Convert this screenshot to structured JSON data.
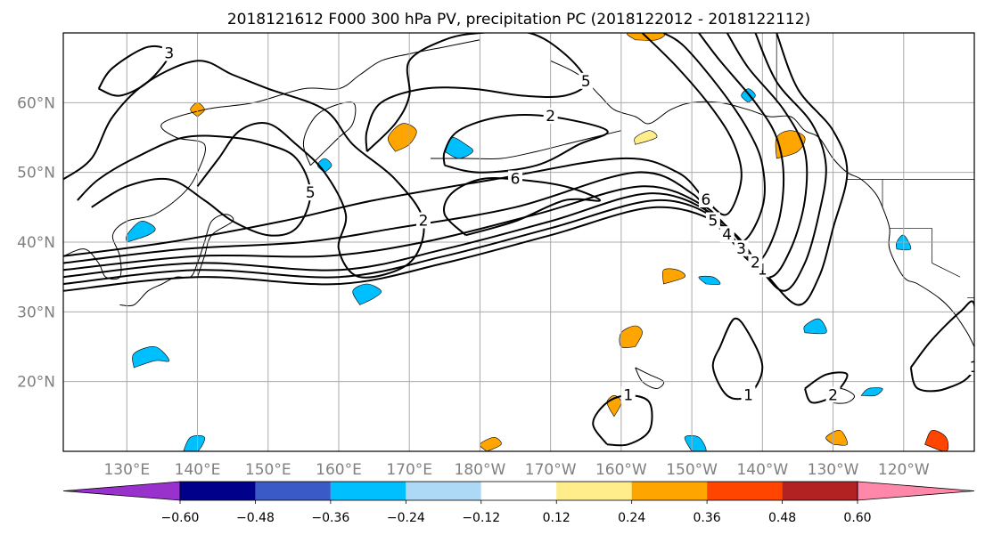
{
  "title": "2018121612 F000 300 hPa PV, precipitation PC (2018122012 - 2018122112)",
  "map": {
    "lon_range": [
      121,
      250
    ],
    "lat_range": [
      10,
      70
    ],
    "lon_ticks": [
      {
        "lon": 130,
        "label": "130°E"
      },
      {
        "lon": 140,
        "label": "140°E"
      },
      {
        "lon": 150,
        "label": "150°E"
      },
      {
        "lon": 160,
        "label": "160°E"
      },
      {
        "lon": 170,
        "label": "170°E"
      },
      {
        "lon": 180,
        "label": "180°W"
      },
      {
        "lon": 190,
        "label": "170°W"
      },
      {
        "lon": 200,
        "label": "160°W"
      },
      {
        "lon": 210,
        "label": "150°W"
      },
      {
        "lon": 220,
        "label": "140°W"
      },
      {
        "lon": 230,
        "label": "130°W"
      },
      {
        "lon": 240,
        "label": "120°W"
      }
    ],
    "lat_ticks": [
      {
        "lat": 20,
        "label": "20°N"
      },
      {
        "lat": 30,
        "label": "30°N"
      },
      {
        "lat": 40,
        "label": "40°N"
      },
      {
        "lat": 50,
        "label": "50°N"
      },
      {
        "lat": 60,
        "label": "60°N"
      }
    ],
    "tick_label_color": "#808080",
    "grid": true,
    "grid_color": "#aaaaaa"
  },
  "pv_contours": [
    {
      "level": "1",
      "points": [
        [
          121,
          33
        ],
        [
          140,
          35
        ],
        [
          160,
          34
        ],
        [
          175,
          37
        ],
        [
          190,
          41
        ],
        [
          205,
          45
        ],
        [
          215,
          42
        ],
        [
          220,
          36
        ],
        [
          225,
          31
        ],
        [
          228,
          35
        ],
        [
          230,
          42
        ],
        [
          232,
          50
        ],
        [
          230,
          56
        ],
        [
          225,
          62
        ],
        [
          222,
          70
        ]
      ]
    },
    {
      "level": "2",
      "points": [
        [
          121,
          34
        ],
        [
          140,
          36
        ],
        [
          160,
          35
        ],
        [
          175,
          38
        ],
        [
          190,
          42
        ],
        [
          205,
          46
        ],
        [
          214,
          43
        ],
        [
          219,
          37
        ],
        [
          223,
          33
        ],
        [
          226,
          37
        ],
        [
          228,
          44
        ],
        [
          229,
          51
        ],
        [
          227,
          57
        ],
        [
          222,
          63
        ],
        [
          219,
          70
        ]
      ]
    },
    {
      "level": "3",
      "points": [
        [
          121,
          35
        ],
        [
          140,
          37
        ],
        [
          160,
          36
        ],
        [
          175,
          39
        ],
        [
          190,
          43
        ],
        [
          204,
          47
        ],
        [
          213,
          44
        ],
        [
          217,
          39
        ],
        [
          221,
          35
        ],
        [
          224,
          39
        ],
        [
          226,
          46
        ],
        [
          226,
          53
        ],
        [
          223,
          59
        ],
        [
          218,
          65
        ],
        [
          215,
          70
        ]
      ]
    },
    {
      "level": "4",
      "points": [
        [
          121,
          36
        ],
        [
          140,
          38
        ],
        [
          158,
          38
        ],
        [
          172,
          40
        ],
        [
          188,
          44
        ],
        [
          203,
          48
        ],
        [
          212,
          45
        ],
        [
          215,
          41
        ],
        [
          219,
          37
        ],
        [
          222,
          42
        ],
        [
          223,
          49
        ],
        [
          222,
          55
        ],
        [
          219,
          60
        ],
        [
          214,
          66
        ],
        [
          211,
          70
        ]
      ]
    },
    {
      "level": "5",
      "points": [
        [
          121,
          37
        ],
        [
          138,
          39
        ],
        [
          155,
          40
        ],
        [
          168,
          42
        ],
        [
          185,
          45
        ],
        [
          202,
          50
        ],
        [
          210,
          47
        ],
        [
          213,
          43
        ],
        [
          217,
          40
        ],
        [
          220,
          45
        ],
        [
          220,
          51
        ],
        [
          218,
          56
        ],
        [
          214,
          62
        ],
        [
          209,
          68
        ],
        [
          206,
          70
        ]
      ]
    },
    {
      "level": "6",
      "points": [
        [
          121,
          38
        ],
        [
          136,
          40
        ],
        [
          152,
          43
        ],
        [
          165,
          46
        ],
        [
          182,
          49
        ],
        [
          200,
          52
        ],
        [
          208,
          50
        ],
        [
          212,
          46
        ],
        [
          215,
          44
        ],
        [
          217,
          49
        ],
        [
          216,
          54
        ],
        [
          213,
          59
        ],
        [
          208,
          65
        ],
        [
          203,
          70
        ]
      ]
    },
    {
      "level": "2",
      "points": [
        [
          140,
          48
        ],
        [
          143,
          52
        ],
        [
          146,
          56
        ],
        [
          150,
          57
        ],
        [
          154,
          54
        ],
        [
          158,
          50
        ],
        [
          161,
          44
        ],
        [
          160,
          39
        ],
        [
          163,
          35
        ],
        [
          170,
          37
        ],
        [
          172,
          43
        ],
        [
          168,
          49
        ],
        [
          162,
          54
        ],
        [
          158,
          59
        ],
        [
          150,
          62
        ],
        [
          145,
          64
        ],
        [
          140,
          66
        ],
        [
          133,
          63
        ],
        [
          128,
          58
        ],
        [
          125,
          52
        ],
        [
          121,
          49
        ]
      ]
    },
    {
      "level": "5",
      "points": [
        [
          125,
          45
        ],
        [
          130,
          48
        ],
        [
          136,
          49
        ],
        [
          141,
          46
        ],
        [
          145,
          43
        ],
        [
          150,
          41
        ],
        [
          154,
          42
        ],
        [
          156,
          47
        ],
        [
          154,
          52
        ],
        [
          150,
          54
        ],
        [
          145,
          55
        ],
        [
          138,
          55
        ],
        [
          131,
          52
        ],
        [
          126,
          49
        ],
        [
          123,
          46
        ]
      ]
    },
    {
      "level": "3",
      "points": [
        [
          126,
          62
        ],
        [
          128,
          65
        ],
        [
          133,
          68
        ],
        [
          136,
          67
        ],
        [
          133,
          63
        ],
        [
          129,
          61
        ],
        [
          126,
          62
        ]
      ]
    },
    {
      "level": "2",
      "points": [
        [
          175,
          51
        ],
        [
          180,
          50
        ],
        [
          188,
          51
        ],
        [
          194,
          54
        ],
        [
          198,
          56
        ],
        [
          190,
          58
        ],
        [
          183,
          58
        ],
        [
          177,
          56
        ],
        [
          175,
          53
        ],
        [
          175,
          51
        ]
      ]
    },
    {
      "level": "6",
      "points": [
        [
          178,
          41
        ],
        [
          185,
          43
        ],
        [
          192,
          46
        ],
        [
          197,
          46
        ],
        [
          192,
          48
        ],
        [
          185,
          49
        ],
        [
          180,
          49
        ],
        [
          176,
          47
        ],
        [
          175,
          44
        ],
        [
          178,
          41
        ]
      ]
    },
    {
      "level": "5",
      "points": [
        [
          164,
          53
        ],
        [
          168,
          57
        ],
        [
          170,
          61
        ],
        [
          170,
          66
        ],
        [
          175,
          69
        ],
        [
          180,
          70
        ],
        [
          187,
          70
        ],
        [
          192,
          67
        ],
        [
          195,
          63
        ],
        [
          192,
          61
        ],
        [
          186,
          61
        ],
        [
          179,
          62
        ],
        [
          172,
          62
        ],
        [
          166,
          60
        ],
        [
          164,
          56
        ],
        [
          164,
          53
        ]
      ]
    },
    {
      "level": "1",
      "points": [
        [
          214,
          25
        ],
        [
          216,
          29
        ],
        [
          218,
          27
        ],
        [
          220,
          22
        ],
        [
          218,
          18
        ],
        [
          215,
          18
        ],
        [
          213,
          22
        ],
        [
          214,
          25
        ]
      ]
    },
    {
      "level": "1",
      "points": [
        [
          198,
          11
        ],
        [
          201,
          11
        ],
        [
          204,
          13
        ],
        [
          204,
          17
        ],
        [
          201,
          18
        ],
        [
          198,
          17
        ],
        [
          196,
          14
        ],
        [
          198,
          11
        ]
      ]
    },
    {
      "level": "1",
      "points": [
        [
          241,
          22
        ],
        [
          244,
          26
        ],
        [
          248,
          30
        ],
        [
          250,
          31
        ],
        [
          250,
          22
        ],
        [
          246,
          19
        ],
        [
          242,
          19
        ],
        [
          241,
          22
        ]
      ]
    },
    {
      "level": "2",
      "points": [
        [
          226,
          19
        ],
        [
          229,
          21
        ],
        [
          232,
          21
        ],
        [
          230,
          18
        ],
        [
          227,
          17
        ],
        [
          226,
          19
        ]
      ]
    }
  ],
  "precip_patches": [
    {
      "value": -0.3,
      "points": [
        [
          175,
          53
        ],
        [
          177,
          52
        ],
        [
          179,
          53
        ],
        [
          178,
          54
        ],
        [
          176,
          55
        ],
        [
          175,
          53
        ]
      ]
    },
    {
      "value": -0.3,
      "points": [
        [
          130,
          40
        ],
        [
          133,
          41
        ],
        [
          134,
          42
        ],
        [
          132,
          43
        ],
        [
          130,
          41
        ],
        [
          130,
          40
        ]
      ]
    },
    {
      "value": -0.3,
      "points": [
        [
          163,
          31
        ],
        [
          165,
          32
        ],
        [
          166,
          33
        ],
        [
          164,
          34
        ],
        [
          162,
          33
        ],
        [
          163,
          31
        ]
      ]
    },
    {
      "value": -0.3,
      "points": [
        [
          131,
          22
        ],
        [
          134,
          23
        ],
        [
          136,
          23
        ],
        [
          134,
          25
        ],
        [
          131,
          24
        ],
        [
          131,
          22
        ]
      ]
    },
    {
      "value": -0.3,
      "points": [
        [
          138,
          10
        ],
        [
          140,
          10
        ],
        [
          141,
          12
        ],
        [
          139,
          12
        ],
        [
          138,
          10
        ]
      ]
    },
    {
      "value": -0.3,
      "points": [
        [
          210,
          10
        ],
        [
          212,
          10
        ],
        [
          211,
          12
        ],
        [
          209,
          12
        ],
        [
          210,
          10
        ]
      ]
    },
    {
      "value": -0.3,
      "points": [
        [
          226,
          27
        ],
        [
          229,
          27
        ],
        [
          228,
          29
        ],
        [
          226,
          28
        ],
        [
          226,
          27
        ]
      ]
    },
    {
      "value": -0.3,
      "points": [
        [
          234,
          18
        ],
        [
          236,
          18
        ],
        [
          237,
          19
        ],
        [
          235,
          19
        ],
        [
          234,
          18
        ]
      ]
    },
    {
      "value": -0.3,
      "points": [
        [
          212,
          34
        ],
        [
          214,
          34
        ],
        [
          213,
          35
        ],
        [
          211,
          35
        ],
        [
          212,
          34
        ]
      ]
    },
    {
      "value": -0.3,
      "points": [
        [
          239,
          39
        ],
        [
          241,
          39
        ],
        [
          240,
          41
        ],
        [
          239,
          40
        ],
        [
          239,
          39
        ]
      ]
    },
    {
      "value": -0.3,
      "points": [
        [
          218,
          60
        ],
        [
          219,
          61
        ],
        [
          218,
          62
        ],
        [
          217,
          61
        ],
        [
          218,
          60
        ]
      ]
    },
    {
      "value": -0.3,
      "points": [
        [
          158,
          50
        ],
        [
          159,
          51
        ],
        [
          158,
          52
        ],
        [
          157,
          51
        ],
        [
          158,
          50
        ]
      ]
    },
    {
      "value": 0.3,
      "points": [
        [
          168,
          53
        ],
        [
          170,
          54
        ],
        [
          171,
          56
        ],
        [
          169,
          57
        ],
        [
          167,
          55
        ],
        [
          168,
          53
        ]
      ]
    },
    {
      "value": 0.3,
      "points": [
        [
          140,
          58
        ],
        [
          141,
          59
        ],
        [
          140,
          60
        ],
        [
          139,
          59
        ],
        [
          140,
          58
        ]
      ]
    },
    {
      "value": 0.3,
      "points": [
        [
          206,
          34
        ],
        [
          209,
          35
        ],
        [
          208,
          36
        ],
        [
          206,
          36
        ],
        [
          206,
          34
        ]
      ]
    },
    {
      "value": 0.3,
      "points": [
        [
          202,
          25
        ],
        [
          203,
          27
        ],
        [
          202,
          28
        ],
        [
          200,
          27
        ],
        [
          200,
          25
        ],
        [
          202,
          25
        ]
      ]
    },
    {
      "value": 0.3,
      "points": [
        [
          199,
          15
        ],
        [
          200,
          17
        ],
        [
          199,
          18
        ],
        [
          198,
          17
        ],
        [
          199,
          15
        ]
      ]
    },
    {
      "value": 0.3,
      "points": [
        [
          181,
          10
        ],
        [
          183,
          11
        ],
        [
          182,
          12
        ],
        [
          180,
          11
        ],
        [
          181,
          10
        ]
      ]
    },
    {
      "value": 0.3,
      "points": [
        [
          222,
          52
        ],
        [
          225,
          53
        ],
        [
          226,
          55
        ],
        [
          224,
          56
        ],
        [
          222,
          55
        ],
        [
          222,
          52
        ]
      ]
    },
    {
      "value": 0.3,
      "points": [
        [
          202,
          69
        ],
        [
          205,
          69
        ],
        [
          206,
          70
        ],
        [
          201,
          70
        ],
        [
          202,
          69
        ]
      ]
    },
    {
      "value": 0.3,
      "points": [
        [
          230,
          11
        ],
        [
          232,
          11
        ],
        [
          231,
          13
        ],
        [
          229,
          12
        ],
        [
          230,
          11
        ]
      ]
    },
    {
      "value": 0.4,
      "points": [
        [
          243,
          11
        ],
        [
          246,
          10
        ],
        [
          246,
          12
        ],
        [
          244,
          13
        ],
        [
          243,
          11
        ]
      ]
    },
    {
      "value": 0.15,
      "points": [
        [
          202,
          54
        ],
        [
          205,
          55
        ],
        [
          204,
          56
        ],
        [
          202,
          55
        ],
        [
          202,
          54
        ]
      ]
    }
  ],
  "colorbar": {
    "labels": [
      "−0.60",
      "−0.48",
      "−0.36",
      "−0.24",
      "−0.12",
      "0.12",
      "0.24",
      "0.36",
      "0.48",
      "0.60"
    ],
    "colors": [
      "#9932CC",
      "#00008B",
      "#3A5AC8",
      "#00BFFF",
      "#ADD8F6",
      "#FFFFFF",
      "#FFEC8B",
      "#FFA500",
      "#FF4500",
      "#B22222",
      "#FF88AA"
    ]
  }
}
